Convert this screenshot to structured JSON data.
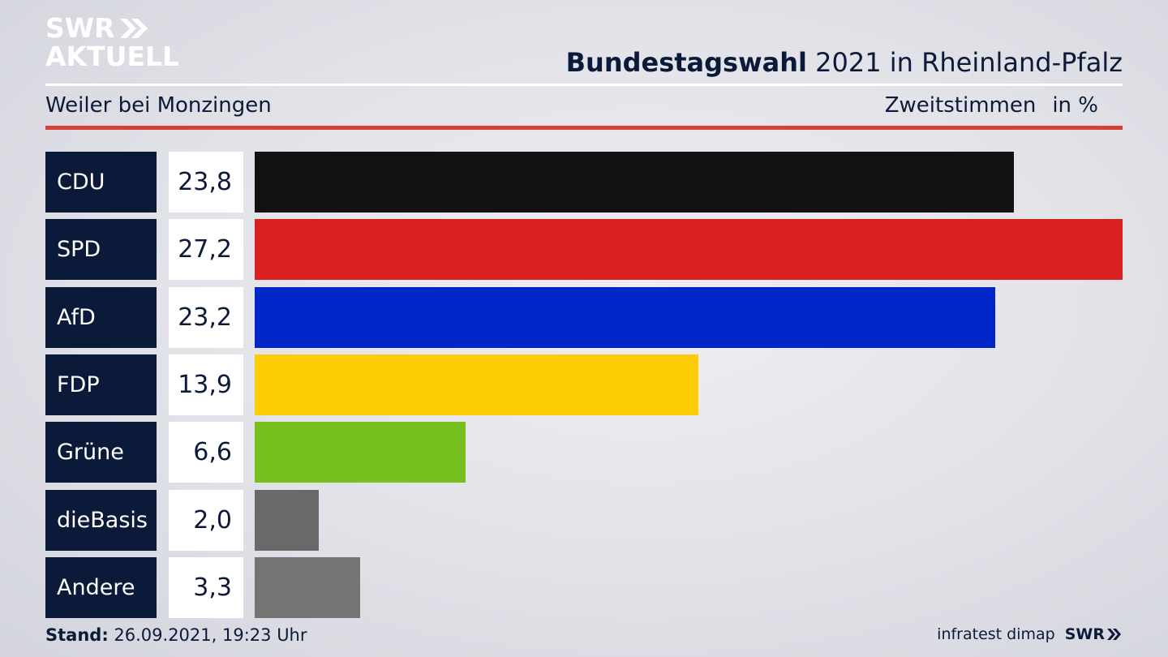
{
  "logo": {
    "line1": "SWR",
    "line2": "AKTUELL"
  },
  "header": {
    "title_bold": "Bundestagswahl",
    "title_rest": "2021 in Rheinland-Pfalz"
  },
  "subtitle": "Weiler bei Monzingen",
  "measure": {
    "label": "Zweitstimmen",
    "unit": "in %"
  },
  "chart_data": {
    "type": "bar",
    "orientation": "horizontal",
    "categories": [
      "CDU",
      "SPD",
      "AfD",
      "FDP",
      "Grüne",
      "dieBasis",
      "Andere"
    ],
    "values": [
      23.8,
      27.2,
      23.2,
      13.9,
      6.6,
      2.0,
      3.3
    ],
    "value_labels": [
      "23,8",
      "27,2",
      "23,2",
      "13,9",
      "6,6",
      "2,0",
      "3,3"
    ],
    "colors": [
      "#121212",
      "#d82020",
      "#0026c8",
      "#fdcc04",
      "#76bf1c",
      "#696969",
      "#747474"
    ],
    "xlim": [
      0,
      27.2
    ]
  },
  "footer": {
    "stand_label": "Stand:",
    "stand_value": "26.09.2021, 19:23 Uhr",
    "source": "infratest dimap",
    "brand": "SWR"
  }
}
